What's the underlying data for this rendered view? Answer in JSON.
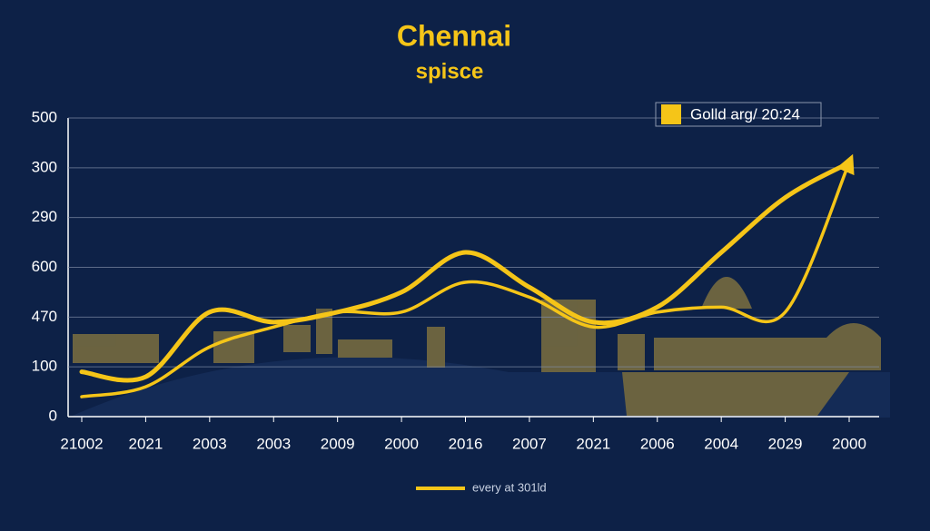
{
  "chart_data": {
    "type": "line",
    "title": "Chennai",
    "subtitle": "spisce",
    "categories": [
      "21002",
      "2021",
      "2003",
      "2003",
      "2009",
      "2000",
      "2016",
      "2007",
      "2021",
      "2006",
      "2004",
      "2029",
      "2000"
    ],
    "series": [
      {
        "name": "Golld arg/ 20:24",
        "color": "#f5c518",
        "values": [
          0.9,
          0.8,
          2.1,
          1.9,
          2.1,
          2.5,
          3.3,
          2.6,
          1.9,
          2.2,
          3.3,
          4.4,
          5.1
        ]
      },
      {
        "name": "every at 301ld",
        "color": "#f5c518",
        "values": [
          0.4,
          0.6,
          1.4,
          1.8,
          2.1,
          2.1,
          2.7,
          2.4,
          1.8,
          2.1,
          2.2,
          2.1,
          5.1
        ]
      }
    ],
    "ylim": [
      0,
      6
    ],
    "yticks": [
      {
        "value": 0,
        "label": "0"
      },
      {
        "value": 1,
        "label": "100"
      },
      {
        "value": 2,
        "label": "470"
      },
      {
        "value": 3,
        "label": "600"
      },
      {
        "value": 4,
        "label": "290"
      },
      {
        "value": 5,
        "label": "300"
      },
      {
        "value": 6,
        "label": "500"
      }
    ],
    "grid": true
  }
}
